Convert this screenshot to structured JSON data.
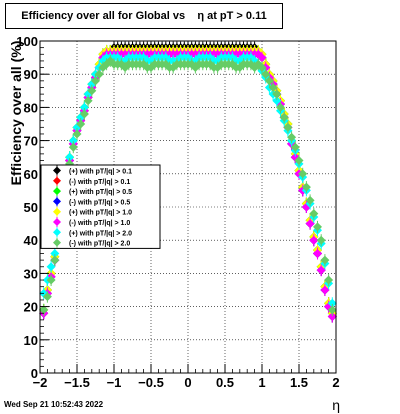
{
  "chart_data": {
    "type": "scatter",
    "title": "Efficiency over all for Global vs    η at pT > 0.11",
    "xlabel": "η",
    "ylabel": "Efficiency over all (%)",
    "xlim": [
      -2,
      2
    ],
    "ylim": [
      0,
      100
    ],
    "x_ticks": [
      "−2",
      "−1.5",
      "−1",
      "−0.5",
      "0",
      "0.5",
      "1",
      "1.5",
      "2"
    ],
    "y_ticks": [
      "0",
      "10",
      "20",
      "30",
      "40",
      "50",
      "60",
      "70",
      "80",
      "90",
      "100"
    ],
    "grid": true,
    "legend_position": "left-middle",
    "x": [
      -1.95,
      -1.9,
      -1.85,
      -1.8,
      -1.75,
      -1.7,
      -1.65,
      -1.6,
      -1.55,
      -1.5,
      -1.45,
      -1.4,
      -1.35,
      -1.3,
      -1.25,
      -1.2,
      -1.15,
      -1.1,
      -1.05,
      -1.0,
      -0.95,
      -0.9,
      -0.85,
      -0.8,
      -0.75,
      -0.7,
      -0.65,
      -0.6,
      -0.55,
      -0.5,
      -0.45,
      -0.4,
      -0.35,
      -0.3,
      -0.25,
      -0.2,
      -0.15,
      -0.1,
      -0.05,
      0.0,
      0.05,
      0.1,
      0.15,
      0.2,
      0.25,
      0.3,
      0.35,
      0.4,
      0.45,
      0.5,
      0.55,
      0.6,
      0.65,
      0.7,
      0.75,
      0.8,
      0.85,
      0.9,
      0.95,
      1.0,
      1.05,
      1.1,
      1.15,
      1.2,
      1.25,
      1.3,
      1.35,
      1.4,
      1.45,
      1.5,
      1.55,
      1.6,
      1.65,
      1.7,
      1.75,
      1.8,
      1.85,
      1.9,
      1.95
    ],
    "series": [
      {
        "name": "(+) with pT/|q| > 0.1",
        "color": "#000000",
        "values": [
          19,
          25,
          30,
          35,
          42,
          50,
          58,
          65,
          70,
          74,
          77,
          80,
          84,
          87,
          90,
          93,
          96,
          97,
          97,
          98,
          98,
          98,
          98,
          98,
          98,
          98,
          98,
          98,
          98,
          98,
          98,
          98,
          98,
          98,
          98,
          98,
          98,
          98,
          98,
          98,
          98,
          98,
          98,
          98,
          98,
          98,
          98,
          98,
          98,
          98,
          98,
          98,
          98,
          98,
          98,
          98,
          98,
          98,
          97,
          96,
          93,
          90,
          88,
          85,
          82,
          78,
          75,
          70,
          66,
          61,
          56,
          51,
          46,
          41,
          37,
          32,
          26,
          21,
          18
        ]
      },
      {
        "name": "(-) with pT/|q| > 0.1",
        "color": "#ff0000",
        "values": [
          18,
          24,
          29,
          34,
          41,
          49,
          57,
          64,
          69,
          73,
          76,
          79,
          83,
          86,
          89,
          92,
          95,
          96,
          96,
          97,
          97,
          97,
          97,
          97,
          97,
          97,
          97,
          97,
          97,
          97,
          97,
          97,
          97,
          97,
          97,
          97,
          97,
          97,
          97,
          97,
          97,
          97,
          97,
          97,
          97,
          97,
          97,
          97,
          97,
          97,
          97,
          97,
          97,
          97,
          97,
          97,
          97,
          97,
          96,
          95,
          92,
          89,
          87,
          84,
          81,
          77,
          74,
          69,
          65,
          60,
          55,
          50,
          45,
          40,
          36,
          31,
          25,
          20,
          17
        ]
      },
      {
        "name": "(+) with pT/|q| > 0.5",
        "color": "#00ff00",
        "values": [
          19,
          25,
          30,
          35,
          42,
          50,
          58,
          65,
          70,
          74,
          77,
          80,
          84,
          87,
          90,
          93,
          96,
          97,
          97,
          97,
          97,
          97,
          97,
          97,
          97,
          97,
          97,
          97,
          97,
          97,
          97,
          97,
          97,
          97,
          97,
          97,
          97,
          97,
          97,
          97,
          97,
          97,
          97,
          97,
          97,
          97,
          97,
          97,
          97,
          97,
          97,
          97,
          97,
          97,
          97,
          97,
          97,
          97,
          97,
          96,
          93,
          90,
          88,
          85,
          82,
          78,
          75,
          70,
          66,
          61,
          56,
          51,
          46,
          41,
          37,
          32,
          26,
          21,
          18
        ]
      },
      {
        "name": "(-) with pT/|q| > 0.5",
        "color": "#0000ff",
        "values": [
          18,
          24,
          29,
          34,
          41,
          49,
          57,
          64,
          69,
          73,
          76,
          79,
          83,
          86,
          89,
          92,
          95,
          96,
          96,
          96,
          96,
          96,
          96,
          96,
          96,
          96,
          96,
          96,
          96,
          96,
          96,
          96,
          96,
          96,
          96,
          96,
          96,
          96,
          96,
          96,
          96,
          96,
          96,
          96,
          96,
          96,
          96,
          96,
          96,
          96,
          96,
          96,
          96,
          96,
          96,
          96,
          96,
          96,
          96,
          95,
          92,
          89,
          87,
          84,
          81,
          77,
          74,
          69,
          65,
          60,
          55,
          50,
          45,
          40,
          36,
          31,
          25,
          20,
          17
        ]
      },
      {
        "name": "(+) with pT/|q| > 1.0",
        "color": "#ffff00",
        "values": [
          19,
          25,
          30,
          35,
          42,
          50,
          58,
          65,
          70,
          74,
          77,
          80,
          84,
          87,
          90,
          93,
          96,
          97,
          97,
          97,
          97,
          97,
          97,
          97,
          97,
          97,
          97,
          97,
          97,
          97,
          97,
          97,
          97,
          97,
          97,
          97,
          97,
          97,
          97,
          97,
          97,
          97,
          97,
          97,
          97,
          97,
          97,
          97,
          97,
          97,
          97,
          97,
          97,
          97,
          97,
          97,
          97,
          97,
          97,
          96,
          93,
          90,
          88,
          85,
          82,
          78,
          75,
          70,
          66,
          61,
          56,
          51,
          46,
          41,
          37,
          32,
          26,
          21,
          18
        ]
      },
      {
        "name": "(-) with pT/|q| > 1.0",
        "color": "#ff00ff",
        "values": [
          18,
          24,
          29,
          34,
          41,
          49,
          57,
          64,
          69,
          73,
          76,
          79,
          83,
          86,
          89,
          92,
          95,
          96,
          96,
          96,
          96,
          96,
          96,
          96,
          96,
          96,
          96,
          96,
          96,
          96,
          96,
          96,
          96,
          96,
          96,
          96,
          96,
          96,
          96,
          96,
          96,
          96,
          96,
          96,
          96,
          96,
          96,
          96,
          96,
          96,
          96,
          96,
          96,
          96,
          96,
          96,
          96,
          96,
          96,
          95,
          92,
          89,
          87,
          84,
          81,
          77,
          74,
          69,
          65,
          60,
          55,
          50,
          45,
          40,
          36,
          31,
          25,
          20,
          17
        ]
      },
      {
        "name": "(+) with pT/|q| > 2.0",
        "color": "#00ffff",
        "values": [
          24,
          28,
          32,
          36,
          43,
          51,
          59,
          65,
          70,
          74,
          77,
          80,
          84,
          87,
          90,
          92,
          94,
          95,
          95,
          95,
          95,
          94,
          94,
          95,
          95,
          95,
          95,
          95,
          94,
          94,
          95,
          95,
          95,
          95,
          94,
          94,
          94,
          95,
          95,
          95,
          94,
          94,
          95,
          95,
          95,
          95,
          94,
          94,
          95,
          95,
          95,
          95,
          94,
          94,
          95,
          95,
          95,
          94,
          93,
          91,
          89,
          86,
          84,
          82,
          79,
          76,
          73,
          70,
          67,
          63,
          59,
          55,
          51,
          47,
          43,
          39,
          33,
          27,
          21
        ]
      },
      {
        "name": "(-) with pT/|q| > 2.0",
        "color": "#66cc66",
        "values": [
          19,
          23,
          28,
          34,
          40,
          48,
          56,
          63,
          68,
          72,
          75,
          78,
          82,
          85,
          88,
          90,
          92,
          93,
          94,
          93,
          93,
          93,
          92,
          93,
          93,
          93,
          93,
          93,
          92,
          92,
          93,
          93,
          93,
          93,
          92,
          92,
          93,
          93,
          93,
          93,
          93,
          92,
          93,
          93,
          93,
          93,
          92,
          92,
          93,
          93,
          93,
          93,
          92,
          92,
          93,
          93,
          93,
          92,
          93,
          92,
          90,
          88,
          86,
          84,
          80,
          77,
          74,
          71,
          68,
          64,
          60,
          56,
          52,
          48,
          44,
          40,
          34,
          28,
          19
        ]
      }
    ]
  },
  "footer": {
    "datestamp": "Wed Sep 21 10:52:43 2022"
  }
}
